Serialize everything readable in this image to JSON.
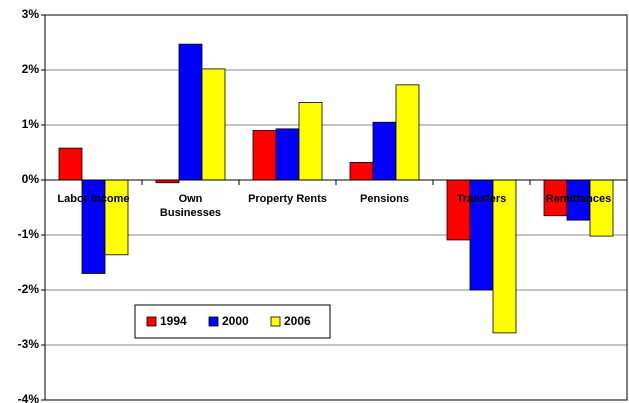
{
  "chart_data": {
    "type": "bar",
    "categories": [
      "Labor Income",
      "Own Businesses",
      "Property Rents",
      "Pensions",
      "Transfers",
      "Remittances"
    ],
    "series": [
      {
        "name": "1994",
        "color": "#ff0000",
        "values": [
          0.58,
          -0.05,
          0.9,
          0.32,
          -1.09,
          -0.65
        ]
      },
      {
        "name": "2000",
        "color": "#0000ff",
        "values": [
          -1.7,
          2.47,
          0.93,
          1.05,
          -2.0,
          -0.73
        ]
      },
      {
        "name": "2006",
        "color": "#ffff00",
        "values": [
          -1.36,
          2.02,
          1.41,
          1.73,
          -2.78,
          -1.02
        ]
      }
    ],
    "ylim": [
      -4,
      3
    ],
    "yticks": [
      {
        "value": -4,
        "label": "-4%"
      },
      {
        "value": -3,
        "label": "-3%"
      },
      {
        "value": -2,
        "label": "-2%"
      },
      {
        "value": -1,
        "label": "-1%"
      },
      {
        "value": 0,
        "label": "0%"
      },
      {
        "value": 1,
        "label": "1%"
      },
      {
        "value": 2,
        "label": "2%"
      },
      {
        "value": 3,
        "label": "3%"
      }
    ],
    "grid": true,
    "legend": "lower left"
  }
}
